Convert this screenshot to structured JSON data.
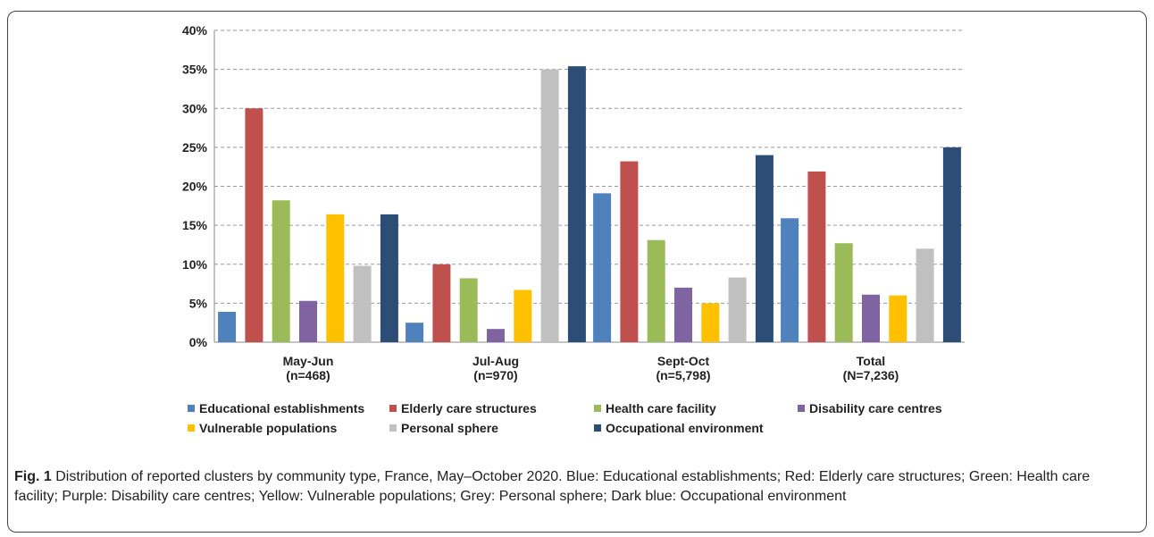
{
  "chart_data": {
    "type": "bar",
    "categories": [
      [
        "May-Jun",
        "(n=468)"
      ],
      [
        "Jul-Aug",
        "(n=970)"
      ],
      [
        "Sept-Oct",
        "(n=5,798)"
      ],
      [
        "Total",
        "(N=7,236)"
      ]
    ],
    "series": [
      {
        "name": "Educational establishments",
        "color": "#4f81bd",
        "values": [
          3.9,
          2.5,
          19.1,
          15.9
        ]
      },
      {
        "name": "Elderly care structures",
        "color": "#c0504d",
        "values": [
          30.0,
          10.0,
          23.2,
          21.9
        ]
      },
      {
        "name": "Health care facility",
        "color": "#9bbb59",
        "values": [
          18.2,
          8.2,
          13.1,
          12.7
        ]
      },
      {
        "name": "Disability care centres",
        "color": "#8064a2",
        "values": [
          5.3,
          1.7,
          7.0,
          6.1
        ]
      },
      {
        "name": "Vulnerable populations",
        "color": "#ffc000",
        "values": [
          16.4,
          6.7,
          5.0,
          6.0
        ]
      },
      {
        "name": "Personal sphere",
        "color": "#c0c0c0",
        "values": [
          9.8,
          35.0,
          8.3,
          12.0
        ]
      },
      {
        "name": "Occupational environment",
        "color": "#2c4d75",
        "values": [
          16.4,
          35.4,
          24.0,
          25.0
        ]
      }
    ],
    "ylim": [
      0,
      40
    ],
    "yticks": [
      "0%",
      "5%",
      "10%",
      "15%",
      "20%",
      "25%",
      "30%",
      "35%",
      "40%"
    ],
    "grid": true,
    "legend_position": "bottom"
  },
  "caption": {
    "label": "Fig. 1",
    "text": "Distribution of reported clusters by community type, France, May–October 2020. Blue: Educational establishments; Red: Elderly care structures; Green: Health care facility; Purple: Disability care centres; Yellow: Vulnerable populations; Grey: Personal sphere; Dark blue: Occupational environment"
  }
}
